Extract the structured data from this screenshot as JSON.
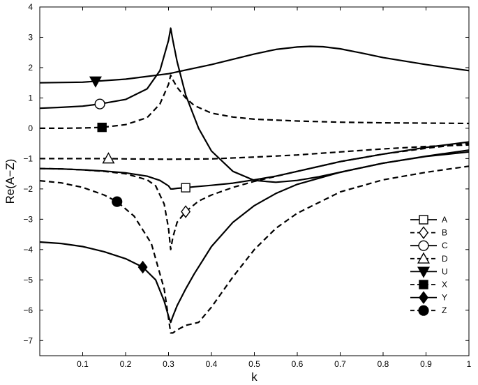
{
  "chart_data": {
    "type": "line",
    "xlabel": "k",
    "ylabel": "Re(A−Z)",
    "xlim": [
      0,
      1
    ],
    "ylim": [
      -7.5,
      4
    ],
    "x_ticks": [
      0.1,
      0.2,
      0.3,
      0.4,
      0.5,
      0.6,
      0.7,
      0.8,
      0.9,
      1
    ],
    "x_tick_labels": [
      "0.1",
      "0.2",
      "0.3",
      "0.4",
      "0.5",
      "0.6",
      "0.7",
      "0.8",
      "0.9",
      "1"
    ],
    "y_ticks": [
      -7,
      -6,
      -5,
      -4,
      -3,
      -2,
      -1,
      0,
      1,
      2,
      3,
      4
    ],
    "y_tick_labels": [
      "−7",
      "−6",
      "−5",
      "−4",
      "−3",
      "−2",
      "−1",
      "0",
      "1",
      "2",
      "3",
      "4"
    ],
    "grid": false,
    "legend_position": "lower-right",
    "series": [
      {
        "name": "A",
        "style": "solid",
        "marker": "square",
        "marker_filled": false,
        "marker_x": 0.34,
        "x": [
          0.0,
          0.05,
          0.1,
          0.15,
          0.2,
          0.25,
          0.28,
          0.3,
          0.305,
          0.31,
          0.32,
          0.34,
          0.36,
          0.4,
          0.45,
          0.5,
          0.55,
          0.6,
          0.7,
          0.8,
          0.9,
          1.0
        ],
        "y": [
          -1.33,
          -1.34,
          -1.37,
          -1.41,
          -1.47,
          -1.58,
          -1.72,
          -1.9,
          -2.0,
          -2.0,
          -1.98,
          -1.96,
          -1.93,
          -1.88,
          -1.81,
          -1.7,
          -1.58,
          -1.42,
          -1.1,
          -0.85,
          -0.63,
          -0.45
        ]
      },
      {
        "name": "B",
        "style": "dashed",
        "marker": "diamond",
        "marker_filled": false,
        "marker_x": 0.34,
        "x": [
          0.0,
          0.05,
          0.1,
          0.15,
          0.2,
          0.25,
          0.27,
          0.29,
          0.3,
          0.305,
          0.31,
          0.32,
          0.34,
          0.37,
          0.4,
          0.45,
          0.5,
          0.6,
          0.7,
          0.8,
          0.9,
          1.0
        ],
        "y": [
          -1.33,
          -1.34,
          -1.37,
          -1.42,
          -1.5,
          -1.7,
          -1.9,
          -2.5,
          -3.3,
          -4.0,
          -3.6,
          -3.1,
          -2.75,
          -2.4,
          -2.2,
          -1.95,
          -1.75,
          -1.42,
          -1.1,
          -0.85,
          -0.66,
          -0.5
        ]
      },
      {
        "name": "C",
        "style": "solid",
        "marker": "circle",
        "marker_filled": false,
        "marker_x": 0.14,
        "x": [
          0.0,
          0.05,
          0.1,
          0.14,
          0.2,
          0.25,
          0.28,
          0.3,
          0.305,
          0.31,
          0.32,
          0.34,
          0.37,
          0.4,
          0.45,
          0.5,
          0.55,
          0.6,
          0.65,
          0.7,
          0.8,
          0.9,
          1.0
        ],
        "y": [
          0.66,
          0.69,
          0.73,
          0.8,
          0.95,
          1.3,
          1.9,
          2.9,
          3.3,
          2.9,
          2.2,
          1.1,
          0.0,
          -0.75,
          -1.42,
          -1.72,
          -1.78,
          -1.72,
          -1.6,
          -1.45,
          -1.15,
          -0.92,
          -0.72
        ]
      },
      {
        "name": "D",
        "style": "dashed",
        "marker": "triangle-up",
        "marker_filled": false,
        "marker_x": 0.16,
        "x": [
          0.0,
          0.1,
          0.16,
          0.2,
          0.3,
          0.4,
          0.5,
          0.6,
          0.7,
          0.8,
          0.9,
          1.0
        ],
        "y": [
          -1.0,
          -1.0,
          -1.0,
          -1.01,
          -1.02,
          -1.01,
          -0.95,
          -0.88,
          -0.78,
          -0.68,
          -0.6,
          -0.55
        ]
      },
      {
        "name": "U",
        "style": "solid",
        "marker": "triangle-down",
        "marker_filled": true,
        "marker_x": 0.13,
        "x": [
          0.0,
          0.1,
          0.2,
          0.3,
          0.4,
          0.5,
          0.55,
          0.6,
          0.63,
          0.66,
          0.7,
          0.75,
          0.8,
          0.9,
          1.0
        ],
        "y": [
          1.5,
          1.52,
          1.62,
          1.8,
          2.1,
          2.45,
          2.6,
          2.68,
          2.7,
          2.69,
          2.62,
          2.48,
          2.33,
          2.1,
          1.9
        ]
      },
      {
        "name": "X",
        "style": "dashed",
        "marker": "square",
        "marker_filled": true,
        "marker_x": 0.145,
        "x": [
          0.0,
          0.05,
          0.1,
          0.145,
          0.2,
          0.25,
          0.28,
          0.3,
          0.305,
          0.31,
          0.32,
          0.34,
          0.36,
          0.4,
          0.45,
          0.5,
          0.6,
          0.7,
          0.8,
          0.9,
          1.0
        ],
        "y": [
          0.0,
          0.0,
          0.01,
          0.03,
          0.12,
          0.35,
          0.8,
          1.45,
          1.75,
          1.6,
          1.35,
          1.0,
          0.75,
          0.5,
          0.37,
          0.3,
          0.24,
          0.2,
          0.18,
          0.17,
          0.16
        ]
      },
      {
        "name": "Y",
        "style": "solid",
        "marker": "diamond",
        "marker_filled": true,
        "marker_x": 0.24,
        "x": [
          0.0,
          0.05,
          0.1,
          0.15,
          0.2,
          0.24,
          0.27,
          0.29,
          0.3,
          0.305,
          0.31,
          0.32,
          0.34,
          0.36,
          0.4,
          0.45,
          0.5,
          0.55,
          0.6,
          0.7,
          0.8,
          0.9,
          1.0
        ],
        "y": [
          -3.75,
          -3.8,
          -3.9,
          -4.07,
          -4.3,
          -4.58,
          -5.0,
          -5.7,
          -6.2,
          -6.4,
          -6.2,
          -5.85,
          -5.3,
          -4.8,
          -3.9,
          -3.1,
          -2.55,
          -2.15,
          -1.85,
          -1.45,
          -1.15,
          -0.93,
          -0.78
        ]
      },
      {
        "name": "Z",
        "style": "dashed",
        "marker": "circle",
        "marker_filled": true,
        "marker_x": 0.18,
        "x": [
          0.0,
          0.05,
          0.1,
          0.15,
          0.18,
          0.22,
          0.26,
          0.29,
          0.305,
          0.31,
          0.32,
          0.34,
          0.37,
          0.4,
          0.45,
          0.5,
          0.55,
          0.6,
          0.7,
          0.8,
          0.9,
          1.0
        ],
        "y": [
          -1.73,
          -1.8,
          -1.95,
          -2.2,
          -2.42,
          -2.9,
          -3.8,
          -5.3,
          -6.75,
          -6.75,
          -6.65,
          -6.5,
          -6.4,
          -5.9,
          -4.9,
          -4.0,
          -3.3,
          -2.8,
          -2.1,
          -1.7,
          -1.45,
          -1.25
        ]
      }
    ]
  }
}
